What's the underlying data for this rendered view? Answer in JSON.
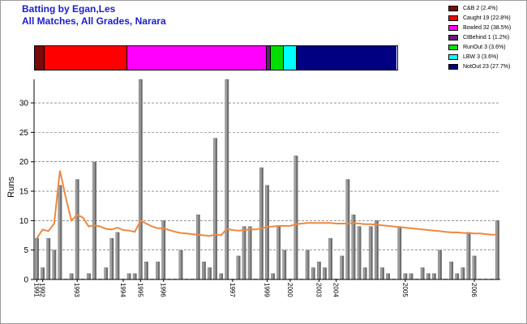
{
  "title_line1": "Batting by Egan,Les",
  "title_line2": "All Matches, All Grades, Narara",
  "legend": [
    {
      "label": "C&B 2 (2.4%)",
      "color": "#7a0a0a",
      "percent": 2.4
    },
    {
      "label": "Caught 19 (22.8%)",
      "color": "#ff0000",
      "percent": 22.8
    },
    {
      "label": "Bowled 32 (38.5%)",
      "color": "#ff00ff",
      "percent": 38.5
    },
    {
      "label": "CtBehind 1 (1.2%)",
      "color": "#6a1a7a",
      "percent": 1.2
    },
    {
      "label": "RunOut 3 (3.6%)",
      "color": "#00dd00",
      "percent": 3.6
    },
    {
      "label": "LBW 3 (3.6%)",
      "color": "#00ffff",
      "percent": 3.6
    },
    {
      "label": "NotOut 23 (27.7%)",
      "color": "#000080",
      "percent": 27.7
    }
  ],
  "chart_data": {
    "type": "bar",
    "ylabel": "Runs",
    "ylim": [
      0,
      34
    ],
    "yticks": [
      0,
      5,
      10,
      15,
      20,
      25,
      30
    ],
    "grid": "horizontal dashed",
    "values": [
      7,
      2,
      7,
      5,
      16,
      0,
      1,
      17,
      0,
      1,
      20,
      0,
      2,
      7,
      8,
      0,
      1,
      1,
      34,
      3,
      0,
      3,
      10,
      0,
      0,
      5,
      0,
      0,
      11,
      3,
      2,
      24,
      1,
      34,
      0,
      4,
      9,
      9,
      0,
      19,
      16,
      1,
      9,
      5,
      0,
      21,
      0,
      5,
      2,
      3,
      2,
      7,
      0,
      4,
      17,
      11,
      9,
      2,
      9,
      10,
      2,
      1,
      0,
      9,
      1,
      1,
      0,
      2,
      1,
      1,
      5,
      0,
      3,
      1,
      2,
      8,
      4,
      0,
      0,
      0,
      10
    ],
    "average": [
      7.0,
      8.5,
      8.2,
      9.5,
      18.5,
      14.0,
      10.0,
      11.0,
      10.5,
      9.0,
      9.2,
      9.0,
      8.6,
      8.5,
      8.8,
      8.4,
      8.3,
      8.1,
      10.0,
      9.5,
      9.0,
      8.7,
      8.7,
      8.4,
      8.1,
      7.9,
      7.8,
      7.7,
      7.6,
      7.5,
      7.4,
      7.6,
      7.5,
      8.6,
      8.4,
      8.3,
      8.4,
      8.5,
      8.5,
      8.7,
      8.9,
      9.0,
      9.1,
      9.1,
      9.1,
      9.4,
      9.5,
      9.6,
      9.6,
      9.6,
      9.6,
      9.6,
      9.5,
      9.5,
      9.5,
      9.6,
      9.5,
      9.4,
      9.4,
      9.3,
      9.2,
      9.1,
      9.0,
      8.9,
      8.8,
      8.7,
      8.6,
      8.5,
      8.4,
      8.3,
      8.2,
      8.1,
      8.0,
      8.0,
      7.9,
      7.9,
      7.8,
      7.8,
      7.7,
      7.6,
      7.6
    ],
    "average_color": "#f08840",
    "bar_color": "#a0a0a0",
    "x_labels": [
      {
        "index": 0,
        "text": "1991"
      },
      {
        "index": 1,
        "text": "1992"
      },
      {
        "index": 7,
        "text": "1993"
      },
      {
        "index": 15,
        "text": "1994"
      },
      {
        "index": 18,
        "text": "1995"
      },
      {
        "index": 22,
        "text": "1996"
      },
      {
        "index": 34,
        "text": "1997"
      },
      {
        "index": 40,
        "text": "1999"
      },
      {
        "index": 44,
        "text": "2000"
      },
      {
        "index": 49,
        "text": "2003"
      },
      {
        "index": 52,
        "text": "2004"
      },
      {
        "index": 64,
        "text": "2005"
      },
      {
        "index": 76,
        "text": "2006"
      }
    ]
  }
}
